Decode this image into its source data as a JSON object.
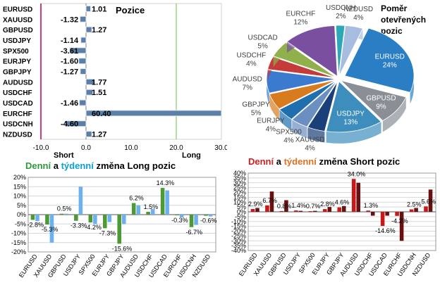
{
  "positions": {
    "title": "Pozice",
    "label_short": "Short",
    "label_long": "Long",
    "ticks": [
      "-10.0",
      "0.0",
      "10.0",
      "20.0",
      "30.0"
    ],
    "tick_values": [
      -10,
      0,
      10,
      20,
      30
    ],
    "colors": {
      "bar": "#5b7fa6",
      "bar_light": "#dfe7f1",
      "short_line": "#c0003c",
      "long_line": "#6fbf4a",
      "grid": "#b9cde5"
    }
  },
  "pie": {
    "title_lines": [
      "Poměr",
      "otevřených",
      "pozic"
    ],
    "colors": {
      "label_text": "#404040"
    }
  },
  "long_change": {
    "title_parts": [
      "Denní",
      " a ",
      "týdenní",
      " změna Long pozic"
    ],
    "title_colors": [
      "#2e9a3a",
      "#000000",
      "#0aa0d8",
      "#000000"
    ],
    "yticks": [
      "20%",
      "15%",
      "10%",
      "5%",
      "0%",
      "-5%",
      "-10%",
      "-15%",
      "-20%"
    ],
    "ytick_values": [
      20,
      15,
      10,
      5,
      0,
      -5,
      -10,
      -15,
      -20
    ],
    "colors": {
      "daily": "#4d9a34",
      "weekly": "#6db0ef",
      "grid": "#cfd8e6"
    }
  },
  "short_change": {
    "title_parts": [
      "Denní",
      " a ",
      "týdenní",
      " změna Short pozic"
    ],
    "title_colors": [
      "#d02020",
      "#000000",
      "#e07020",
      "#000000"
    ],
    "yticks": [
      "40%",
      "35%",
      "30%",
      "25%",
      "20%",
      "15%",
      "10%",
      "5%",
      "0%",
      "-5%",
      "-10%",
      "-15%",
      "-20%",
      "-25%",
      "-30%",
      "-35%",
      "-40%"
    ],
    "ytick_values": [
      40,
      35,
      30,
      25,
      20,
      15,
      10,
      5,
      0,
      -5,
      -10,
      -15,
      -20,
      -25,
      -30,
      -35,
      -40
    ],
    "colors": {
      "daily": "#c81818",
      "weekly": "#6a1010",
      "grid": "#d8d8d8"
    }
  },
  "chart_data": [
    {
      "type": "bar",
      "title": "Pozice",
      "orientation": "horizontal",
      "categories": [
        "EURUSD",
        "XAUUSD",
        "GBPUSD",
        "USDJPY",
        "SPX500",
        "EURJPY",
        "GBPJPY",
        "AUDUSD",
        "USDCHF",
        "USDCAD",
        "EURCHF",
        "USDCNH",
        "NZDUSD"
      ],
      "values": [
        1.01,
        -1.32,
        1.27,
        -1.14,
        -3.61,
        -1.6,
        -1.27,
        1.77,
        1.51,
        -1.46,
        60.4,
        -4.6,
        1.27
      ],
      "value_labels": [
        "1.01",
        "-1.32",
        "1.27",
        "-1.14",
        "-3.61",
        "-1.60",
        "-1.27",
        "1.77",
        "1.51",
        "-1.46",
        "60.40",
        "-4.60",
        "1.27"
      ],
      "xlim": [
        -10,
        30
      ]
    },
    {
      "type": "pie",
      "title": "Poměr otevřených pozic",
      "labels": [
        "EURUSD",
        "GBPUSD",
        "USDJPY",
        "XAUUSD",
        "SPX500",
        "EURJPY",
        "GBPJPY",
        "AUDUSD",
        "USDCHF",
        "USDCAD",
        "EURCHF",
        "USDCNH",
        "NZDUSD"
      ],
      "values": [
        24,
        9,
        13,
        4,
        4,
        4,
        5,
        7,
        4,
        5,
        12,
        2,
        4
      ],
      "value_labels": [
        "24%",
        "9%",
        "13%",
        "4%",
        "4%",
        "4%",
        "5%",
        "7%",
        "4%",
        "5%",
        "12%",
        "2%",
        "4%"
      ],
      "colors": [
        "#2a7fc4",
        "#8a8f96",
        "#3d8ebd",
        "#1b3f78",
        "#6a8fc0",
        "#1f6fae",
        "#d87b1e",
        "#3a7bd0",
        "#c53a3a",
        "#8fb04a",
        "#7a4fa0",
        "#2ea7b8",
        "#a7bde0"
      ]
    },
    {
      "type": "bar",
      "title": "Denní a týdenní změna Long pozic",
      "categories": [
        "EURUSD",
        "XAUUSD",
        "GBPUSD",
        "USDJPY",
        "SPX500",
        "EURJPY",
        "GBPJPY",
        "AUDUSD",
        "USDCHF",
        "USDCAD",
        "EURCHF",
        "USDCNH",
        "NZDUSD"
      ],
      "series": [
        {
          "name": "Denní",
          "values": [
            -2.8,
            -5.3,
            0.5,
            -3.3,
            -4.2,
            -7.3,
            -15.6,
            6.2,
            1.5,
            14.3,
            -0.3,
            -6.7,
            -0.6
          ]
        },
        {
          "name": "týdenní",
          "values": [
            -3.5,
            -15.0,
            0.5,
            15.0,
            -5.0,
            -4.0,
            -5.0,
            5.0,
            3.0,
            13.0,
            -1.5,
            -5.5,
            -1.0
          ]
        }
      ],
      "label_texts": [
        "-2.8%",
        "-5.3%",
        "0.5%",
        "-3.3%",
        "-4.2%",
        "-7.3%",
        "-15.6%",
        "6.2%",
        "1.5%",
        "14.3%",
        "-0.3%",
        "-6.7%",
        "-0.6%"
      ],
      "ylim": [
        -20,
        20
      ]
    },
    {
      "type": "bar",
      "title": "Denní a týdenní změna Short pozic",
      "categories": [
        "EURUSD",
        "XAUUSD",
        "GBPUSD",
        "USDJPY",
        "SPX500",
        "EURJPY",
        "GBPJPY",
        "AUDUSD",
        "USDCHF",
        "USDCAD",
        "EURCHF",
        "USDCNH",
        "NZDUSD"
      ],
      "series": [
        {
          "name": "Denní",
          "values": [
            2.9,
            6.7,
            0.8,
            1.4,
            0.7,
            2.8,
            4.6,
            34.0,
            1.3,
            -14.6,
            -4.2,
            2.5,
            5.6
          ]
        },
        {
          "name": "týdenní",
          "values": [
            4.0,
            21.0,
            12.0,
            1.0,
            1.0,
            5.0,
            6.0,
            30.0,
            -4.0,
            -4.0,
            -30.0,
            4.0,
            23.0
          ]
        }
      ],
      "label_texts": [
        "2.9%",
        "6.7%",
        "0.8%",
        "1.4%",
        "0.7%",
        "2.8%",
        "4.6%",
        "34.0%",
        "1.3%",
        "-14.6%",
        "-4.2%",
        "2.5%",
        "5.6%"
      ],
      "ylim": [
        -40,
        40
      ]
    }
  ]
}
